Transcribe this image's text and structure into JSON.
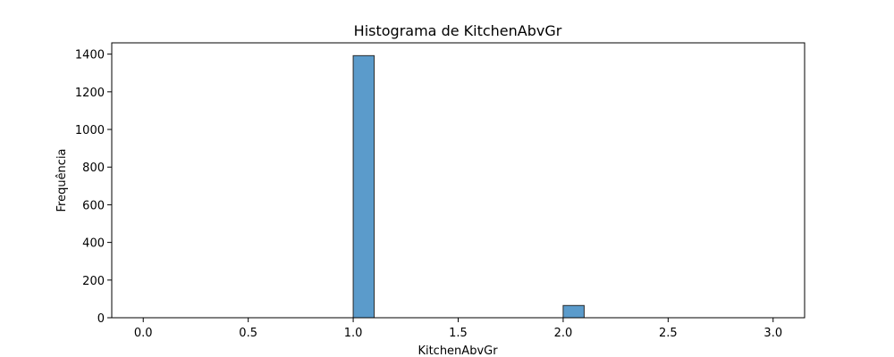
{
  "chart_data": {
    "type": "bar",
    "title": "Histograma de KitchenAbvGr",
    "xlabel": "KitchenAbvGr",
    "ylabel": "Frequência",
    "xlim": [
      -0.15,
      3.15
    ],
    "ylim": [
      0,
      1460
    ],
    "xticks": [
      0.0,
      0.5,
      1.0,
      1.5,
      2.0,
      2.5,
      3.0
    ],
    "xtick_labels": [
      "0.0",
      "0.5",
      "1.0",
      "1.5",
      "2.0",
      "2.5",
      "3.0"
    ],
    "yticks": [
      0,
      200,
      400,
      600,
      800,
      1000,
      1200,
      1400
    ],
    "ytick_labels": [
      "0",
      "200",
      "400",
      "600",
      "800",
      "1000",
      "1200",
      "1400"
    ],
    "bins": [
      {
        "x0": 1.0,
        "x1": 1.1,
        "value": 1392
      },
      {
        "x0": 2.0,
        "x1": 2.1,
        "value": 65
      }
    ],
    "bar_color": "#5b9bcb",
    "bar_edge_color": "#2b2b2b",
    "grid": false,
    "legend": "none"
  }
}
